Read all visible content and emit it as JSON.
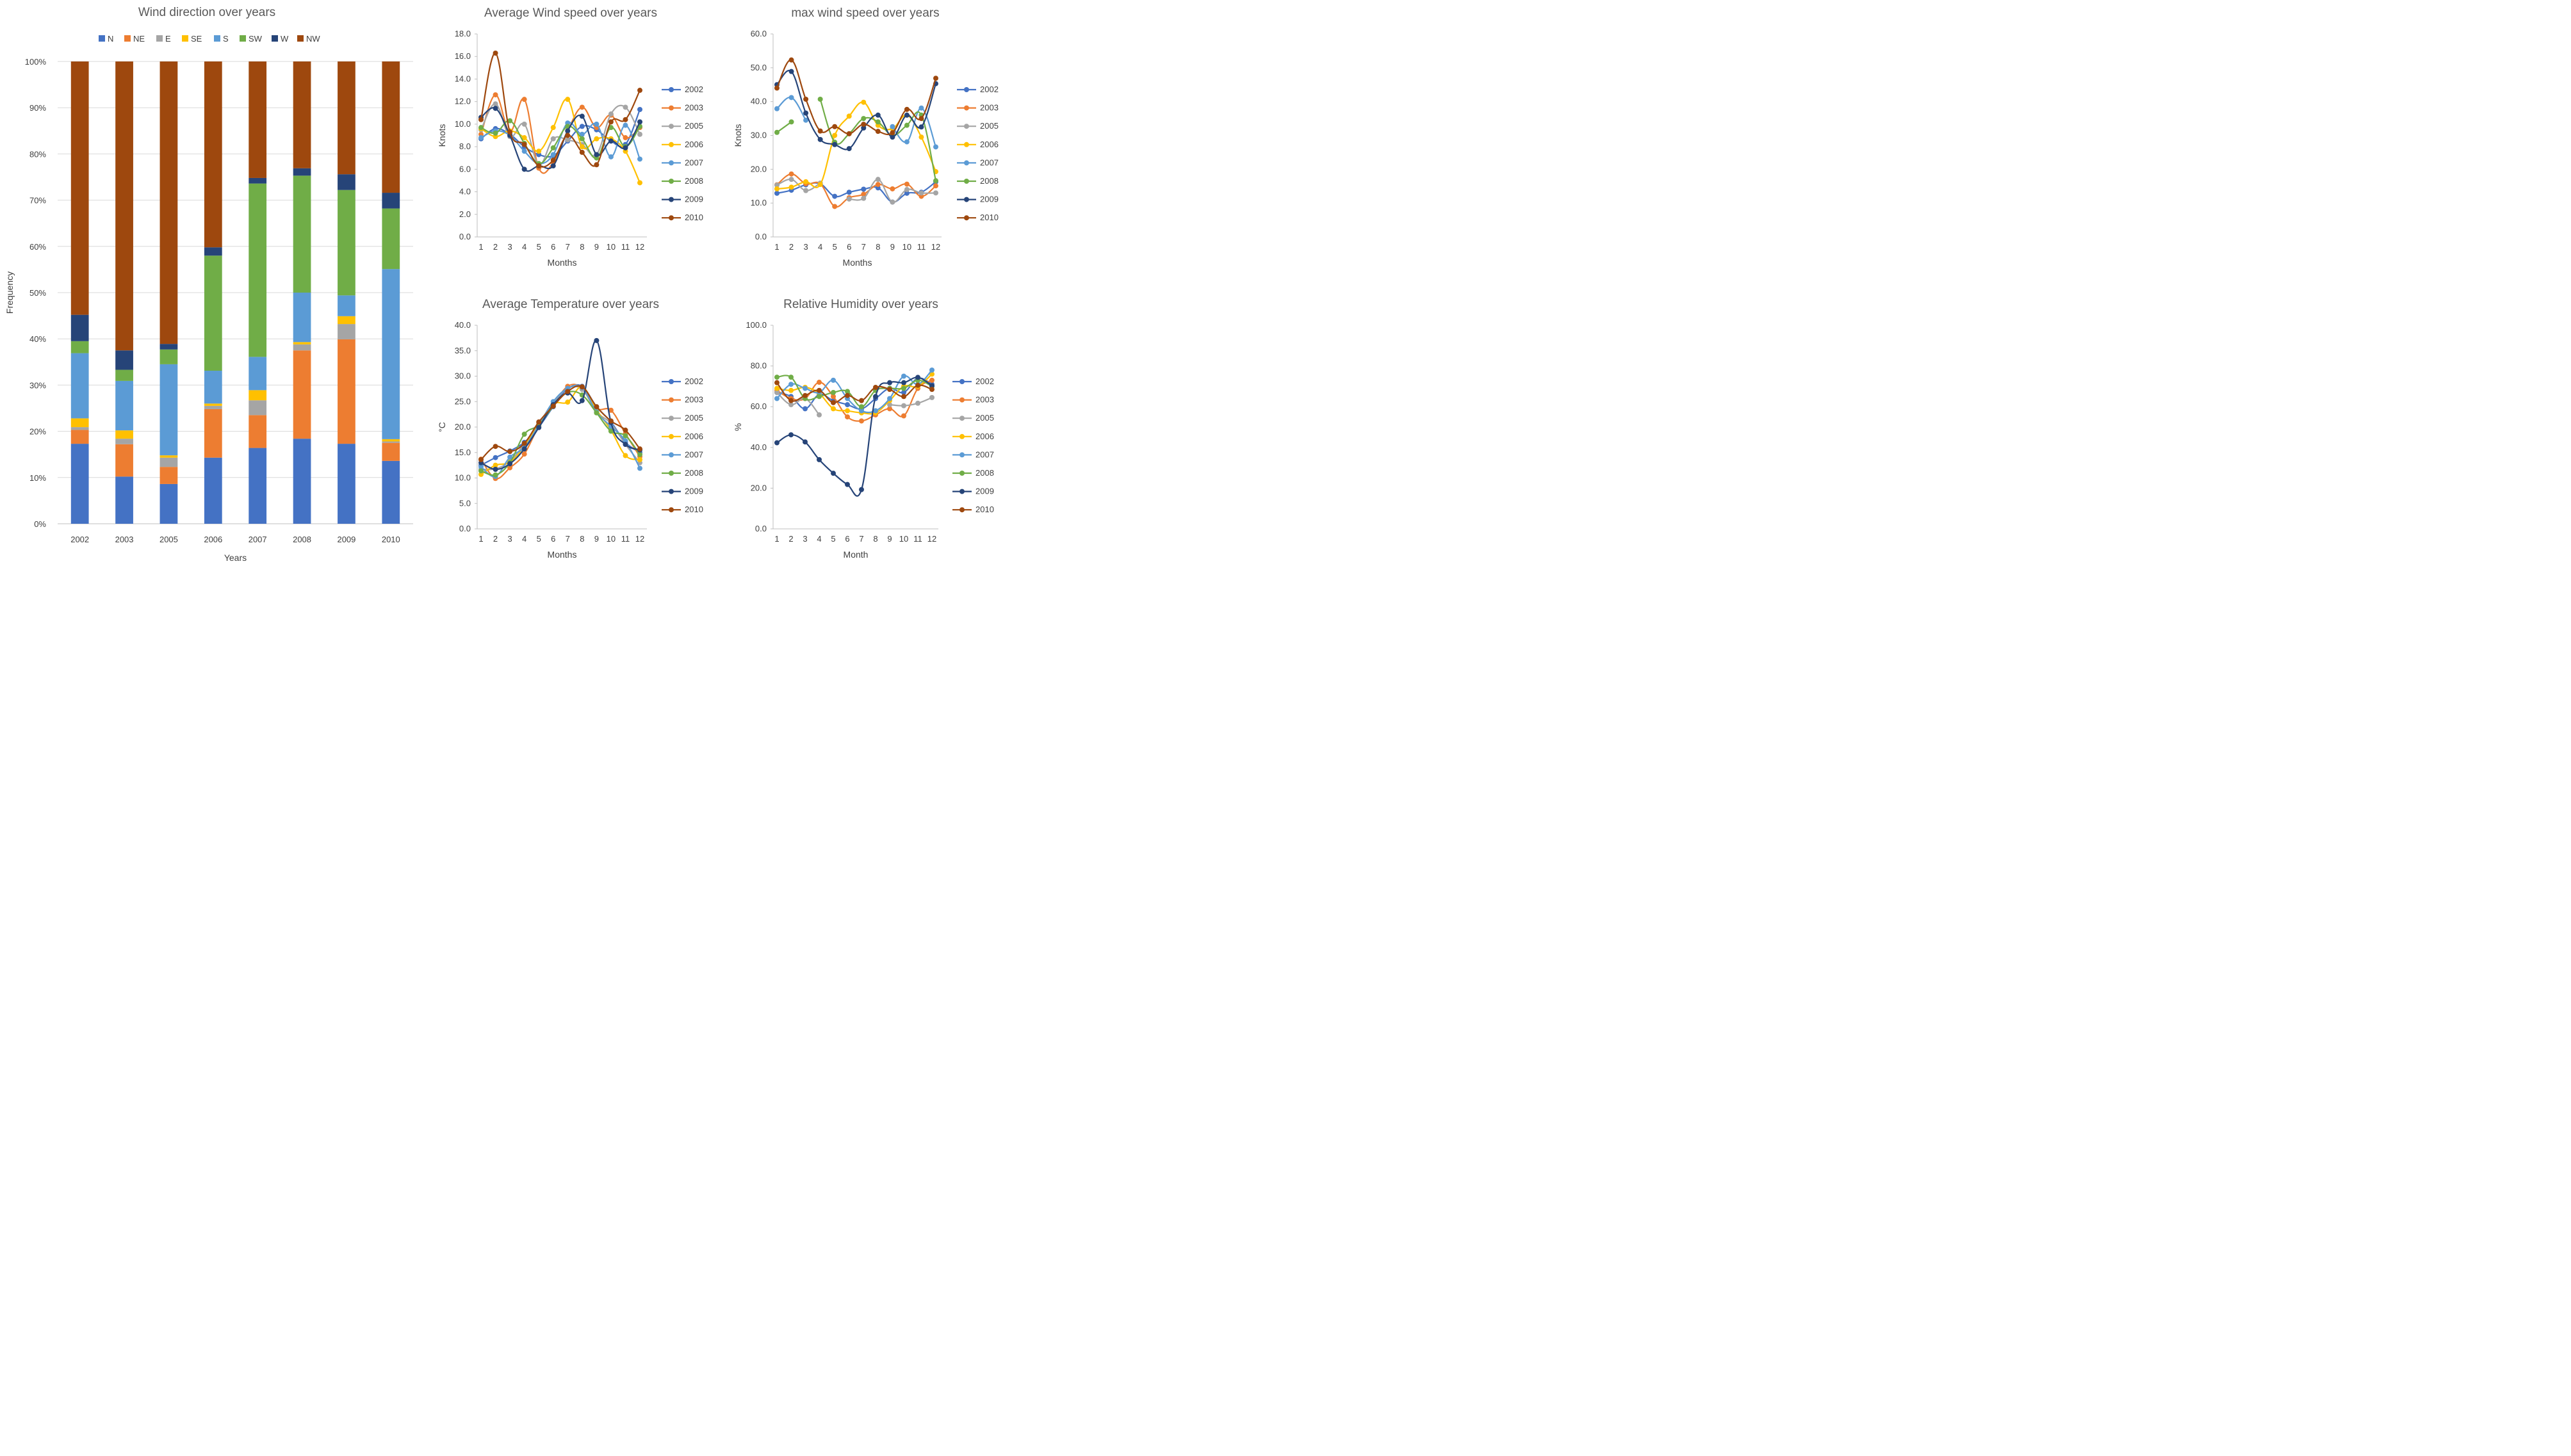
{
  "colors": {
    "N": "#4472c4",
    "NE": "#ed7d31",
    "E": "#a5a5a5",
    "SE": "#ffc000",
    "S": "#5b9bd5",
    "SW": "#70ad47",
    "W": "#264478",
    "NW": "#9e480e",
    "2002": "#4472c4",
    "2003": "#ed7d31",
    "2005": "#a5a5a5",
    "2006": "#ffc000",
    "2007": "#5b9bd5",
    "2008": "#70ad47",
    "2009": "#264478",
    "2010": "#9e480e"
  },
  "chart_data": [
    {
      "type": "bar",
      "stacked": true,
      "title": "Wind direction over years",
      "xlabel": "Years",
      "ylabel": "Frequency",
      "ylim": [
        0,
        100
      ],
      "yticks": [
        "0%",
        "10%",
        "20%",
        "30%",
        "40%",
        "50%",
        "60%",
        "70%",
        "80%",
        "90%",
        "100%"
      ],
      "legend_position": "top",
      "categories": [
        "2002",
        "2003",
        "2005",
        "2006",
        "2007",
        "2008",
        "2009",
        "2010"
      ],
      "series": [
        {
          "name": "N",
          "values": [
            17.3,
            10.2,
            8.6,
            14.3,
            16.4,
            18.4,
            17.3,
            13.6
          ]
        },
        {
          "name": "NE",
          "values": [
            3.0,
            7.0,
            3.7,
            10.5,
            7.1,
            19.1,
            22.6,
            3.9
          ]
        },
        {
          "name": "E",
          "values": [
            0.6,
            1.2,
            2.0,
            0.7,
            3.2,
            1.3,
            3.3,
            0.3
          ]
        },
        {
          "name": "SE",
          "values": [
            1.9,
            1.8,
            0.5,
            0.5,
            2.2,
            0.5,
            1.7,
            0.5
          ]
        },
        {
          "name": "S",
          "values": [
            14.1,
            10.7,
            19.7,
            7.1,
            7.2,
            10.7,
            4.5,
            36.8
          ]
        },
        {
          "name": "SW",
          "values": [
            2.6,
            2.4,
            3.2,
            24.9,
            37.5,
            25.3,
            22.8,
            13.1
          ]
        },
        {
          "name": "W",
          "values": [
            5.7,
            4.2,
            1.2,
            1.8,
            1.2,
            1.6,
            3.4,
            3.4
          ]
        },
        {
          "name": "NW",
          "values": [
            54.8,
            62.5,
            61.1,
            40.2,
            25.2,
            23.1,
            24.4,
            28.4
          ]
        }
      ]
    },
    {
      "type": "line",
      "title": "Average Wind speed over years",
      "xlabel": "Months",
      "ylabel": "Knots",
      "ylim": [
        0,
        18
      ],
      "yticks": [
        "0.0",
        "2.0",
        "4.0",
        "6.0",
        "8.0",
        "10.0",
        "12.0",
        "14.0",
        "16.0",
        "18.0"
      ],
      "legend_position": "right",
      "x": [
        "1",
        "2",
        "3",
        "4",
        "5",
        "6",
        "7",
        "8",
        "9",
        "10",
        "11",
        "12"
      ],
      "series": [
        {
          "name": "2002",
          "values": [
            8.7,
            9.6,
            9.1,
            8.0,
            7.3,
            7.2,
            8.5,
            9.8,
            9.5,
            8.5,
            8.2,
            11.3
          ]
        },
        {
          "name": "2003",
          "values": [
            9.1,
            12.6,
            9.3,
            12.2,
            6.1,
            6.6,
            9.4,
            11.5,
            9.7,
            10.8,
            8.8,
            9.7
          ]
        },
        {
          "name": "2005",
          "values": [
            9.5,
            11.8,
            8.9,
            10.0,
            6.4,
            8.7,
            8.6,
            8.2,
            7.3,
            10.9,
            11.5,
            9.1
          ]
        },
        {
          "name": "2006",
          "values": [
            9.6,
            8.9,
            9.4,
            8.8,
            7.6,
            9.7,
            12.2,
            8.0,
            8.7,
            8.7,
            7.6,
            4.8
          ]
        },
        {
          "name": "2007",
          "values": [
            8.8,
            9.4,
            9.0,
            7.6,
            6.5,
            7.3,
            10.1,
            9.1,
            10.0,
            7.1,
            9.9,
            6.9
          ]
        },
        {
          "name": "2008",
          "values": [
            9.7,
            9.2,
            10.3,
            8.3,
            6.5,
            7.9,
            9.8,
            8.7,
            7.0,
            9.7,
            8.0,
            9.8
          ]
        },
        {
          "name": "2009",
          "values": [
            10.6,
            11.4,
            9.0,
            6.0,
            6.3,
            6.3,
            9.4,
            10.7,
            7.3,
            8.5,
            7.9,
            10.2
          ]
        },
        {
          "name": "2010",
          "values": [
            10.4,
            16.3,
            9.3,
            8.2,
            6.3,
            6.8,
            9.0,
            7.5,
            6.4,
            10.2,
            10.4,
            13.0
          ]
        }
      ]
    },
    {
      "type": "line",
      "title": "max wind speed over years",
      "xlabel": "Months",
      "ylabel": "Knots",
      "ylim": [
        0,
        60
      ],
      "yticks": [
        "0.0",
        "10.0",
        "20.0",
        "30.0",
        "40.0",
        "50.0",
        "60.0"
      ],
      "legend_position": "right",
      "x": [
        "1",
        "2",
        "3",
        "4",
        "5",
        "6",
        "7",
        "8",
        "9",
        "10",
        "11",
        "12"
      ],
      "series": [
        {
          "name": "2002",
          "values": [
            12.9,
            13.8,
            15.4,
            15.7,
            12.0,
            13.2,
            14.1,
            14.5,
            10.3,
            12.9,
            13.2,
            16.3
          ]
        },
        {
          "name": "2003",
          "values": [
            15.4,
            18.6,
            15.7,
            15.7,
            9.0,
            11.6,
            12.6,
            15.5,
            14.2,
            15.6,
            12.0,
            15.1
          ]
        },
        {
          "name": "2005",
          "values": [
            15.3,
            17.0,
            13.7,
            15.9,
            null,
            11.2,
            11.4,
            17.0,
            10.3,
            14.0,
            13.0,
            13.0
          ]
        },
        {
          "name": "2006",
          "values": [
            14.2,
            14.7,
            16.3,
            15.5,
            30.0,
            35.7,
            39.8,
            33.0,
            32.0,
            36.0,
            29.5,
            19.3
          ]
        },
        {
          "name": "2007",
          "values": [
            37.9,
            41.2,
            34.5,
            null,
            null,
            null,
            null,
            null,
            32.6,
            28.1,
            38.1,
            26.6
          ]
        },
        {
          "name": "2008",
          "values": [
            30.9,
            34.0,
            null,
            40.7,
            28.0,
            30.5,
            35.0,
            34.0,
            30.0,
            33.0,
            36.0,
            16.6
          ]
        },
        {
          "name": "2009",
          "values": [
            45.0,
            48.9,
            36.6,
            28.8,
            27.3,
            26.1,
            32.2,
            36.0,
            29.5,
            36.0,
            32.5,
            45.3
          ]
        },
        {
          "name": "2010",
          "values": [
            44.0,
            52.3,
            40.7,
            31.3,
            32.6,
            30.5,
            33.3,
            31.2,
            30.8,
            37.7,
            35.0,
            46.9
          ]
        }
      ]
    },
    {
      "type": "line",
      "title": "Average Temperature over years",
      "xlabel": "Months",
      "ylabel": "°C",
      "ylim": [
        0,
        40
      ],
      "yticks": [
        "0.0",
        "5.0",
        "10.0",
        "15.0",
        "20.0",
        "25.0",
        "30.0",
        "35.0",
        "40.0"
      ],
      "legend_position": "right",
      "x": [
        "1",
        "2",
        "3",
        "4",
        "5",
        "6",
        "7",
        "8",
        "9",
        "10",
        "11",
        "12"
      ],
      "series": [
        {
          "name": "2002",
          "values": [
            12.5,
            14.0,
            15.3,
            17.0,
            20.0,
            24.0,
            27.5,
            28.0,
            24.0,
            21.0,
            17.0,
            15.0
          ]
        },
        {
          "name": "2003",
          "values": [
            13.7,
            9.9,
            12.0,
            14.7,
            20.2,
            24.2,
            28.0,
            27.7,
            23.7,
            23.3,
            18.7,
            14.2
          ]
        },
        {
          "name": "2005",
          "values": [
            11.7,
            11.8,
            13.3,
            16.7,
            20.8,
            24.6,
            27.6,
            27.4,
            23.0,
            20.7,
            16.6,
            13.0
          ]
        },
        {
          "name": "2006",
          "values": [
            10.7,
            12.5,
            13.1,
            16.2,
            20.5,
            24.5,
            24.9,
            27.9,
            23.4,
            19.4,
            14.4,
            13.6
          ]
        },
        {
          "name": "2007",
          "values": [
            12.2,
            10.3,
            14.1,
            16.0,
            20.4,
            25.0,
            27.6,
            27.8,
            23.0,
            20.1,
            17.3,
            11.9
          ]
        },
        {
          "name": "2008",
          "values": [
            11.4,
            10.6,
            13.0,
            18.6,
            20.4,
            24.1,
            26.8,
            26.3,
            22.8,
            19.2,
            18.3,
            14.6
          ]
        },
        {
          "name": "2009",
          "values": [
            13.0,
            11.7,
            12.8,
            15.7,
            19.9,
            24.4,
            26.7,
            25.2,
            37.0,
            20.9,
            16.6,
            15.5
          ]
        },
        {
          "name": "2010",
          "values": [
            13.6,
            16.2,
            15.2,
            16.8,
            21.0,
            24.1,
            27.0,
            27.9,
            24.0,
            21.2,
            19.4,
            15.7
          ]
        }
      ]
    },
    {
      "type": "line",
      "title": "Relative Humidity over years",
      "xlabel": "Month",
      "ylabel": "%",
      "ylim": [
        0,
        100
      ],
      "yticks": [
        "0.0",
        "20.0",
        "40.0",
        "60.0",
        "80.0",
        "100.0"
      ],
      "legend_position": "right",
      "x": [
        "1",
        "2",
        "3",
        "4",
        "5",
        "6",
        "7",
        "8",
        "9",
        "10",
        "11",
        "12"
      ],
      "series": [
        {
          "name": "2002",
          "values": [
            67.0,
            65.0,
            59.0,
            66.0,
            63.0,
            61.0,
            59.0,
            64.0,
            69.0,
            67.0,
            74.0,
            71.0
          ]
        },
        {
          "name": "2003",
          "values": [
            68.0,
            64.0,
            64.0,
            72.0,
            65.0,
            55.0,
            53.0,
            56.0,
            59.0,
            55.5,
            69.0,
            73.0
          ]
        },
        {
          "name": "2005",
          "values": [
            67.0,
            61.0,
            64.0,
            56.0,
            null,
            null,
            null,
            null,
            61.0,
            60.5,
            61.7,
            64.5
          ]
        },
        {
          "name": "2006",
          "values": [
            69.0,
            68.0,
            69.5,
            66.5,
            59.0,
            58.0,
            57.0,
            57.0,
            63.0,
            70.0,
            70.0,
            76.0
          ]
        },
        {
          "name": "2007",
          "values": [
            64.0,
            71.0,
            69.0,
            67.0,
            73.0,
            64.0,
            58.0,
            58.0,
            64.0,
            75.0,
            71.0,
            78.0
          ]
        },
        {
          "name": "2008",
          "values": [
            74.5,
            74.5,
            64.0,
            65.0,
            67.0,
            67.5,
            60.0,
            68.0,
            69.0,
            69.0,
            73.0,
            70.0
          ]
        },
        {
          "name": "2009",
          "values": [
            42.3,
            46.2,
            42.7,
            34.0,
            27.3,
            21.8,
            19.3,
            65.0,
            71.8,
            71.8,
            74.4,
            70.3
          ]
        },
        {
          "name": "2010",
          "values": [
            71.8,
            63.0,
            65.5,
            68.0,
            62.0,
            65.5,
            63.0,
            69.5,
            68.5,
            65.0,
            70.5,
            68.5
          ]
        }
      ]
    }
  ]
}
